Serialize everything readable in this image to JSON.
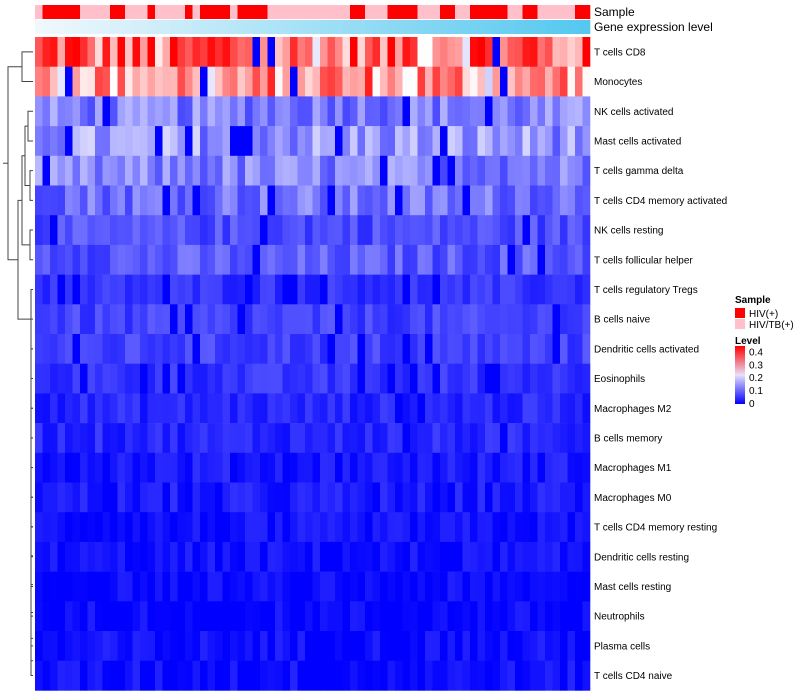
{
  "chart_data": {
    "type": "heatmap",
    "annotation_rows": [
      {
        "name": "Sample"
      },
      {
        "name": "Gene expression level"
      }
    ],
    "sample_groups": [
      "HIV/TB(+)",
      "HIV(+)",
      "HIV(+)",
      "HIV(+)",
      "HIV(+)",
      "HIV(+)",
      "HIV/TB(+)",
      "HIV/TB(+)",
      "HIV/TB(+)",
      "HIV/TB(+)",
      "HIV(+)",
      "HIV(+)",
      "HIV/TB(+)",
      "HIV/TB(+)",
      "HIV/TB(+)",
      "HIV(+)",
      "HIV/TB(+)",
      "HIV/TB(+)",
      "HIV/TB(+)",
      "HIV/TB(+)",
      "HIV(+)",
      "HIV/TB(+)",
      "HIV(+)",
      "HIV(+)",
      "HIV(+)",
      "HIV(+)",
      "HIV/TB(+)",
      "HIV(+)",
      "HIV(+)",
      "HIV(+)",
      "HIV(+)",
      "HIV/TB(+)",
      "HIV/TB(+)",
      "HIV/TB(+)",
      "HIV/TB(+)",
      "HIV/TB(+)",
      "HIV/TB(+)",
      "HIV/TB(+)",
      "HIV/TB(+)",
      "HIV/TB(+)",
      "HIV/TB(+)",
      "HIV/TB(+)",
      "HIV(+)",
      "HIV(+)",
      "HIV/TB(+)",
      "HIV/TB(+)",
      "HIV/TB(+)",
      "HIV(+)",
      "HIV(+)",
      "HIV(+)",
      "HIV(+)",
      "HIV/TB(+)",
      "HIV/TB(+)",
      "HIV/TB(+)",
      "HIV(+)",
      "HIV(+)",
      "HIV/TB(+)",
      "HIV/TB(+)",
      "HIV(+)",
      "HIV(+)",
      "HIV(+)",
      "HIV(+)",
      "HIV(+)",
      "HIV/TB(+)",
      "HIV/TB(+)",
      "HIV(+)",
      "HIV(+)",
      "HIV/TB(+)",
      "HIV/TB(+)",
      "HIV/TB(+)",
      "HIV/TB(+)",
      "HIV/TB(+)",
      "HIV(+)",
      "HIV(+)"
    ],
    "row_labels": [
      "T cells CD8",
      "Monocytes",
      "NK cells activated",
      "Mast cells activated",
      "T cells gamma delta",
      "T cells CD4 memory activated",
      "NK cells resting",
      "T cells follicular helper",
      "T cells regulatory  Tregs",
      "B cells naive",
      "Dendritic cells activated",
      "Eosinophils",
      "Macrophages M2",
      "B cells memory",
      "Macrophages M1",
      "Macrophages M0",
      "T cells CD4 memory resting",
      "Dendritic cells resting",
      "Mast cells resting",
      "Neutrophils",
      "Plasma cells",
      "T cells CD4 naive"
    ],
    "row_mean_levels": [
      0.32,
      0.27,
      0.1,
      0.12,
      0.1,
      0.09,
      0.06,
      0.07,
      0.04,
      0.05,
      0.05,
      0.04,
      0.03,
      0.03,
      0.02,
      0.02,
      0.01,
      0.01,
      0.005,
      0.005,
      0.01,
      0.01
    ],
    "value_range": [
      0,
      0.45
    ],
    "legend": {
      "sample_title": "Sample",
      "sample_entries": [
        {
          "label": "HIV(+)",
          "color": "#ff0000"
        },
        {
          "label": "HIV/TB(+)",
          "color": "#ffc0cb"
        }
      ],
      "level_title": "Level",
      "level_ticks": [
        "0.4",
        "0.3",
        "0.2",
        "0.1",
        "0"
      ],
      "level_tick_values": [
        0.4,
        0.3,
        0.2,
        0.1,
        0
      ],
      "colors": {
        "low": "#0000ff",
        "mid": "#ffffff",
        "high": "#ff0000"
      }
    }
  }
}
